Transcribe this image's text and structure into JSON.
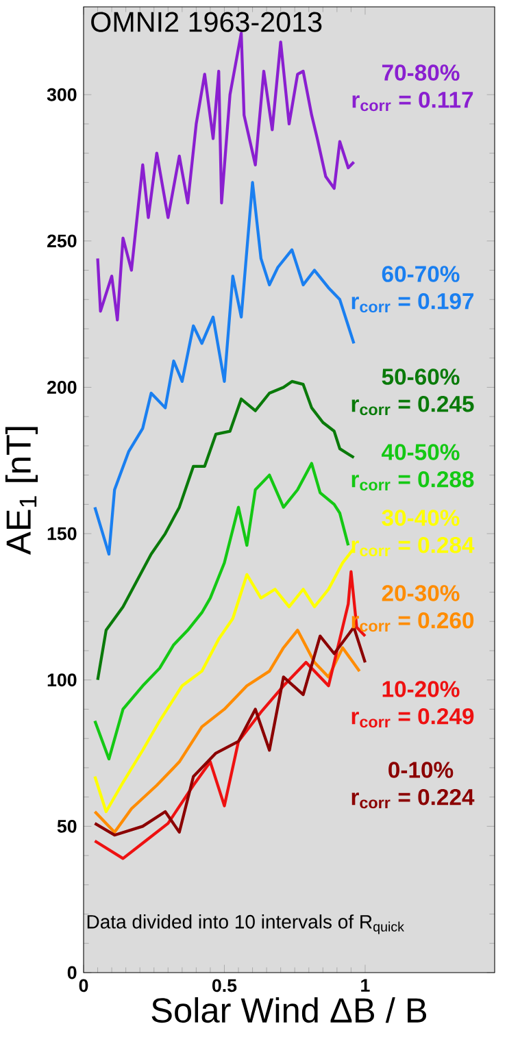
{
  "chart_data": {
    "type": "line",
    "title": "OMNI2 1963-2013",
    "xlabel": "Solar Wind  ΔB / B",
    "ylabel": "AE$_{1}$   [nT]",
    "xlim": [
      0,
      1.46
    ],
    "ylim": [
      0,
      330
    ],
    "xticks": [
      0,
      0.5,
      1
    ],
    "yticks": [
      0,
      50,
      100,
      150,
      200,
      250,
      300
    ],
    "marker": "none",
    "line_style": "solid",
    "annotations": [
      "Data divided into 10 intervals of R$_{quick}$",
      "r$_{corr}$ = 0.117",
      "r$_{corr}$ = 0.197",
      "r$_{corr}$ = 0.245",
      "r$_{corr}$ = 0.288",
      "r$_{corr}$ = 0.284",
      "r$_{corr}$ = 0.260",
      "r$_{corr}$ = 0.249",
      "r$_{corr}$ = 0.224"
    ],
    "series": [
      {
        "name": "70-80%",
        "color": "#8a1fd0",
        "x": [
          0.05,
          0.06,
          0.1,
          0.12,
          0.14,
          0.17,
          0.21,
          0.23,
          0.26,
          0.3,
          0.34,
          0.37,
          0.4,
          0.43,
          0.46,
          0.48,
          0.49,
          0.52,
          0.56,
          0.57,
          0.61,
          0.64,
          0.67,
          0.7,
          0.73,
          0.76,
          0.78,
          0.81,
          0.83,
          0.86,
          0.89,
          0.91,
          0.94,
          0.96
        ],
        "values": [
          244,
          226,
          238,
          223,
          251,
          240,
          276,
          258,
          280,
          258,
          279,
          263,
          290,
          307,
          285,
          308,
          263,
          300,
          321,
          293,
          276,
          308,
          288,
          318,
          290,
          307,
          308,
          293,
          285,
          272,
          268,
          284,
          275,
          277
        ]
      },
      {
        "name": "60-70%",
        "color": "#1a7ff0",
        "x": [
          0.04,
          0.09,
          0.11,
          0.16,
          0.21,
          0.24,
          0.29,
          0.32,
          0.35,
          0.39,
          0.42,
          0.46,
          0.5,
          0.53,
          0.56,
          0.6,
          0.63,
          0.66,
          0.69,
          0.74,
          0.78,
          0.82,
          0.87,
          0.91,
          0.94,
          0.96
        ],
        "values": [
          159,
          143,
          165,
          178,
          186,
          198,
          193,
          209,
          202,
          221,
          215,
          224,
          202,
          238,
          224,
          270,
          244,
          235,
          241,
          247,
          235,
          240,
          234,
          230,
          221,
          215
        ]
      },
      {
        "name": "50-60%",
        "color": "#0a7a0a",
        "x": [
          0.05,
          0.08,
          0.14,
          0.19,
          0.24,
          0.29,
          0.34,
          0.39,
          0.43,
          0.47,
          0.52,
          0.56,
          0.61,
          0.66,
          0.71,
          0.74,
          0.78,
          0.81,
          0.85,
          0.89,
          0.91,
          0.96
        ],
        "values": [
          100,
          117,
          125,
          134,
          143,
          150,
          159,
          173,
          173,
          184,
          185,
          196,
          192,
          198,
          200,
          202,
          201,
          193,
          188,
          185,
          179,
          176
        ]
      },
      {
        "name": "40-50%",
        "color": "#14c814",
        "x": [
          0.04,
          0.09,
          0.14,
          0.21,
          0.27,
          0.32,
          0.37,
          0.42,
          0.45,
          0.5,
          0.55,
          0.58,
          0.61,
          0.66,
          0.71,
          0.76,
          0.81,
          0.84,
          0.89,
          0.91,
          0.94
        ],
        "values": [
          86,
          73,
          90,
          98,
          104,
          112,
          117,
          123,
          128,
          140,
          159,
          146,
          165,
          170,
          159,
          165,
          174,
          164,
          160,
          157,
          146
        ]
      },
      {
        "name": "30-40%",
        "color": "#ffff00",
        "x": [
          0.04,
          0.08,
          0.14,
          0.21,
          0.27,
          0.35,
          0.42,
          0.48,
          0.53,
          0.58,
          0.63,
          0.68,
          0.73,
          0.78,
          0.82,
          0.87,
          0.92,
          0.96
        ],
        "values": [
          67,
          55,
          65,
          76,
          86,
          98,
          103,
          114,
          121,
          136,
          128,
          131,
          125,
          131,
          125,
          131,
          140,
          145
        ]
      },
      {
        "name": "20-30%",
        "color": "#ff8c00",
        "x": [
          0.04,
          0.11,
          0.17,
          0.26,
          0.34,
          0.42,
          0.5,
          0.58,
          0.66,
          0.71,
          0.76,
          0.82,
          0.87,
          0.92,
          0.98
        ],
        "values": [
          55,
          48,
          56,
          64,
          72,
          84,
          90,
          98,
          103,
          111,
          117,
          106,
          101,
          111,
          103
        ]
      },
      {
        "name": "10-20%",
        "color": "#ee1111",
        "x": [
          0.04,
          0.14,
          0.22,
          0.3,
          0.39,
          0.45,
          0.5,
          0.55,
          0.63,
          0.71,
          0.79,
          0.87,
          0.91,
          0.94,
          0.95,
          0.97,
          1.0
        ],
        "values": [
          45,
          39,
          45,
          51,
          64,
          72,
          57,
          79,
          89,
          98,
          106,
          98,
          114,
          126,
          137,
          118,
          115
        ]
      },
      {
        "name": "0-10%",
        "color": "#8b0000",
        "x": [
          0.04,
          0.11,
          0.21,
          0.29,
          0.34,
          0.39,
          0.47,
          0.55,
          0.61,
          0.66,
          0.71,
          0.78,
          0.84,
          0.89,
          0.96,
          1.0
        ],
        "values": [
          51,
          47,
          50,
          55,
          48,
          67,
          75,
          79,
          90,
          76,
          101,
          95,
          115,
          109,
          118,
          106
        ]
      }
    ]
  }
}
